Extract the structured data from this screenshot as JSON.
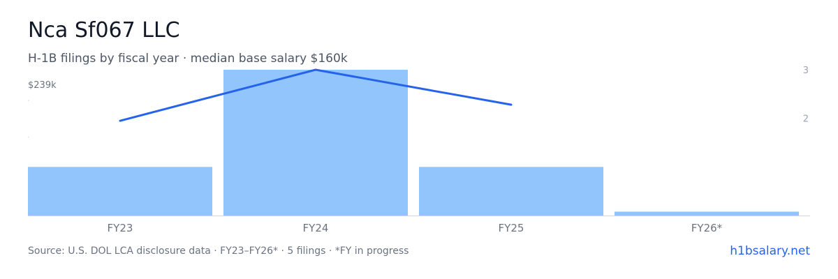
{
  "header": {
    "title": "Nca Sf067 LLC",
    "subtitle": "H-1B filings by fiscal year · median base salary $160k"
  },
  "footer": {
    "source": "Source: U.S. DOL LCA disclosure data · FY23–FY26* · 5 filings · *FY in progress",
    "link": "h1bsalary.net"
  },
  "colors": {
    "bar": "#93c5fd",
    "line": "#2563eb",
    "axis": "#d1d5db",
    "tick": "#6b7280",
    "right_tick": "#9ca3af"
  },
  "chart_data": {
    "type": "bar",
    "categories": [
      "FY23",
      "FY24",
      "FY25",
      "FY26*"
    ],
    "series": [
      {
        "type": "bar",
        "axis": "left",
        "values": [
          1,
          3,
          1,
          0.08
        ]
      },
      {
        "type": "line",
        "axis": "right",
        "values": [
          1.95,
          3,
          2.28,
          null
        ]
      }
    ],
    "left_axis": {
      "top_label": "$239k",
      "ylim": [
        0,
        3.0
      ]
    },
    "right_axis": {
      "ticks": [
        2,
        3
      ],
      "tick_labels": [
        "2",
        "3"
      ],
      "ylim": [
        0,
        3.0
      ]
    }
  }
}
